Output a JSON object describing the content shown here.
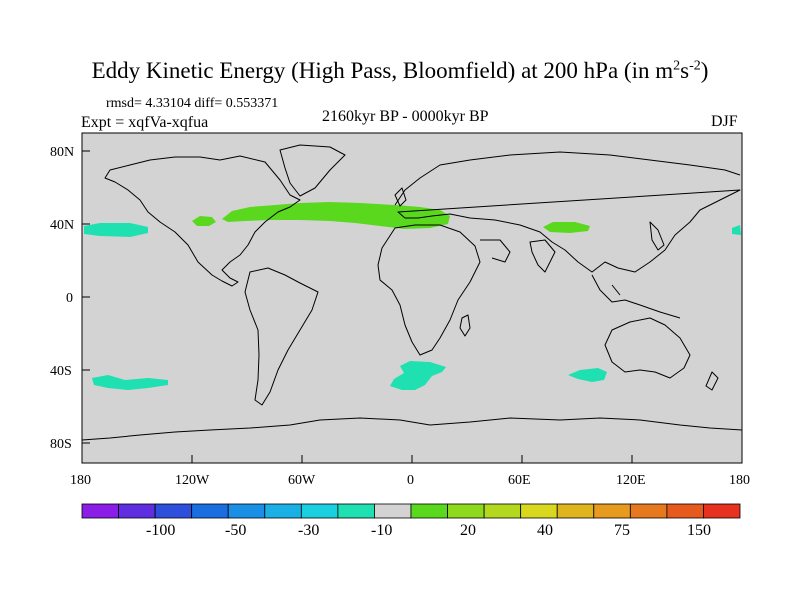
{
  "title": {
    "text": "Eddy Kinetic Energy (High Pass, Bloomfield) at 200 hPa (in m",
    "unit_sup1": "2",
    "unit_s": "s",
    "unit_sup2": "-2",
    "close": ")"
  },
  "stats": "rmsd= 4.33104 diff= 0.553371",
  "experiment": "Expt = xqfVa-xqfua",
  "period": "2160kyr BP - 0000kyr BP",
  "season": "DJF",
  "lat_labels": [
    "80N",
    "40N",
    "0",
    "40S",
    "80S"
  ],
  "lon_labels": [
    "180",
    "120W",
    "60W",
    "0",
    "60E",
    "120E",
    "180"
  ],
  "colorbar": {
    "colors": [
      "#8a1ee6",
      "#5f2ee0",
      "#2e4fdc",
      "#1a6ee0",
      "#1a8fe6",
      "#1ab0e6",
      "#1ad0e0",
      "#1ee0b0",
      "#d3d3d3",
      "#5ad81e",
      "#8ed81e",
      "#b4d81e",
      "#d8d81e",
      "#e0b41e",
      "#e69a1e",
      "#e6781e",
      "#e65a1e",
      "#e6321e"
    ],
    "labels": [
      "-100",
      "-50",
      "-30",
      "-10",
      "20",
      "40",
      "75",
      "150"
    ]
  },
  "map_colors": {
    "ocean_land": "#d3d3d3",
    "positive": "#5ad81e",
    "negative": "#1ee0b0",
    "coast": "#000000"
  }
}
